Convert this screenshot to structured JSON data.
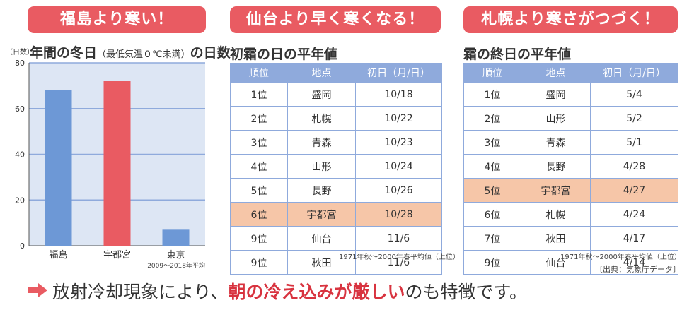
{
  "banners": {
    "left": "福島より寒い！",
    "middle": "仙台より早く寒くなる！",
    "right": "札幌より寒さがつづく！"
  },
  "chart_data": {
    "type": "bar",
    "title_main_a": "年間の冬日",
    "title_paren": "（最低気温０℃未満）",
    "title_main_b": "の日数",
    "ylabel": "（日数）",
    "categories": [
      "福島",
      "宇都宮",
      "東京"
    ],
    "values": [
      68,
      72,
      7
    ],
    "colors": [
      "#6d98d6",
      "#e95b62",
      "#6d98d6"
    ],
    "ylim": [
      0,
      80
    ],
    "yticks": [
      0,
      20,
      40,
      60,
      80
    ],
    "grid": true,
    "note": "2009〜2018年平均"
  },
  "first_frost": {
    "title": "初霜の日の平年値",
    "headers": [
      "順位",
      "地点",
      "初日（月/日）"
    ],
    "rows": [
      {
        "rank": "1位",
        "place": "盛岡",
        "date": "10/18",
        "highlight": false
      },
      {
        "rank": "2位",
        "place": "札幌",
        "date": "10/22",
        "highlight": false
      },
      {
        "rank": "3位",
        "place": "青森",
        "date": "10/23",
        "highlight": false
      },
      {
        "rank": "4位",
        "place": "山形",
        "date": "10/24",
        "highlight": false
      },
      {
        "rank": "5位",
        "place": "長野",
        "date": "10/26",
        "highlight": false
      },
      {
        "rank": "6位",
        "place": "宇都宮",
        "date": "10/28",
        "highlight": true
      },
      {
        "rank": "9位",
        "place": "仙台",
        "date": "11/6",
        "highlight": false
      },
      {
        "rank": "9位",
        "place": "秋田",
        "date": "11/6",
        "highlight": false
      }
    ],
    "note": "1971年秋〜2000年春平均値（上位）"
  },
  "last_frost": {
    "title": "霜の終日の平年値",
    "headers": [
      "順位",
      "地点",
      "初日（月/日）"
    ],
    "rows": [
      {
        "rank": "1位",
        "place": "盛岡",
        "date": "5/4",
        "highlight": false
      },
      {
        "rank": "2位",
        "place": "山形",
        "date": "5/2",
        "highlight": false
      },
      {
        "rank": "3位",
        "place": "青森",
        "date": "5/1",
        "highlight": false
      },
      {
        "rank": "4位",
        "place": "長野",
        "date": "4/28",
        "highlight": false
      },
      {
        "rank": "5位",
        "place": "宇都宮",
        "date": "4/27",
        "highlight": true
      },
      {
        "rank": "6位",
        "place": "札幌",
        "date": "4/24",
        "highlight": false
      },
      {
        "rank": "7位",
        "place": "秋田",
        "date": "4/17",
        "highlight": false
      },
      {
        "rank": "9位",
        "place": "仙台",
        "date": "4/14",
        "highlight": false
      }
    ],
    "note": "1971年秋〜2000年春平均値（上位）"
  },
  "source": "〔出典：気象庁データ〕",
  "bottom": {
    "pre": "放射冷却現象により、",
    "emphasis": "朝の冷え込みが厳しい",
    "post": "のも特徴です。",
    "arrow_color": "#e95b62"
  }
}
